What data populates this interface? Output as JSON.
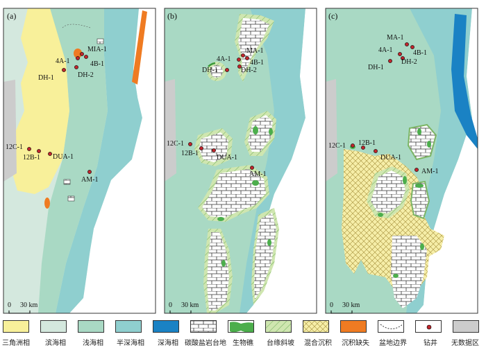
{
  "panels": [
    {
      "label": "(a)",
      "scale_zero": "0",
      "scale_km": "30 km"
    },
    {
      "label": "(b)",
      "scale_zero": "0",
      "scale_km": "30 km"
    },
    {
      "label": "(c)",
      "scale_zero": "0",
      "scale_km": "30 km"
    }
  ],
  "wells": {
    "a": [
      "MIA-1",
      "4A-1",
      "4B-1",
      "DH-1",
      "DH-2",
      "12C-1",
      "12B-1",
      "DUA-1",
      "AM-1"
    ],
    "b": [
      "MA-1",
      "4A-1",
      "4B-1",
      "DH-1",
      "DH-2",
      "12C-1",
      "12B-1",
      "DUA-1",
      "AM-1"
    ],
    "c": [
      "MA-1",
      "4A-1",
      "4B-1",
      "DH-1",
      "DH-2",
      "12C-1",
      "12B-1",
      "DUA-1",
      "AM-1"
    ]
  },
  "legend": [
    {
      "label": "三角洲相",
      "color": "#f8f09a"
    },
    {
      "label": "滨海相",
      "color": "#d4e8de"
    },
    {
      "label": "浅海相",
      "color": "#a9d9c4"
    },
    {
      "label": "半深海相",
      "color": "#8fcfcf"
    },
    {
      "label": "深海相",
      "color": "#1a82c4"
    },
    {
      "label": "碳酸盐岩台地",
      "color": "#ffffff"
    },
    {
      "label": "生物礁",
      "color": "#4cae4c"
    },
    {
      "label": "台缘斜坡",
      "color": "#c9e3a8"
    },
    {
      "label": "混合沉积",
      "color": "#f5ecaa"
    },
    {
      "label": "沉积缺失",
      "color": "#ef7b22"
    },
    {
      "label": "盆地边界",
      "color": "#333333"
    },
    {
      "label": "钻井",
      "color": "#c0262d"
    },
    {
      "label": "无数据区",
      "color": "#cccccc"
    }
  ]
}
